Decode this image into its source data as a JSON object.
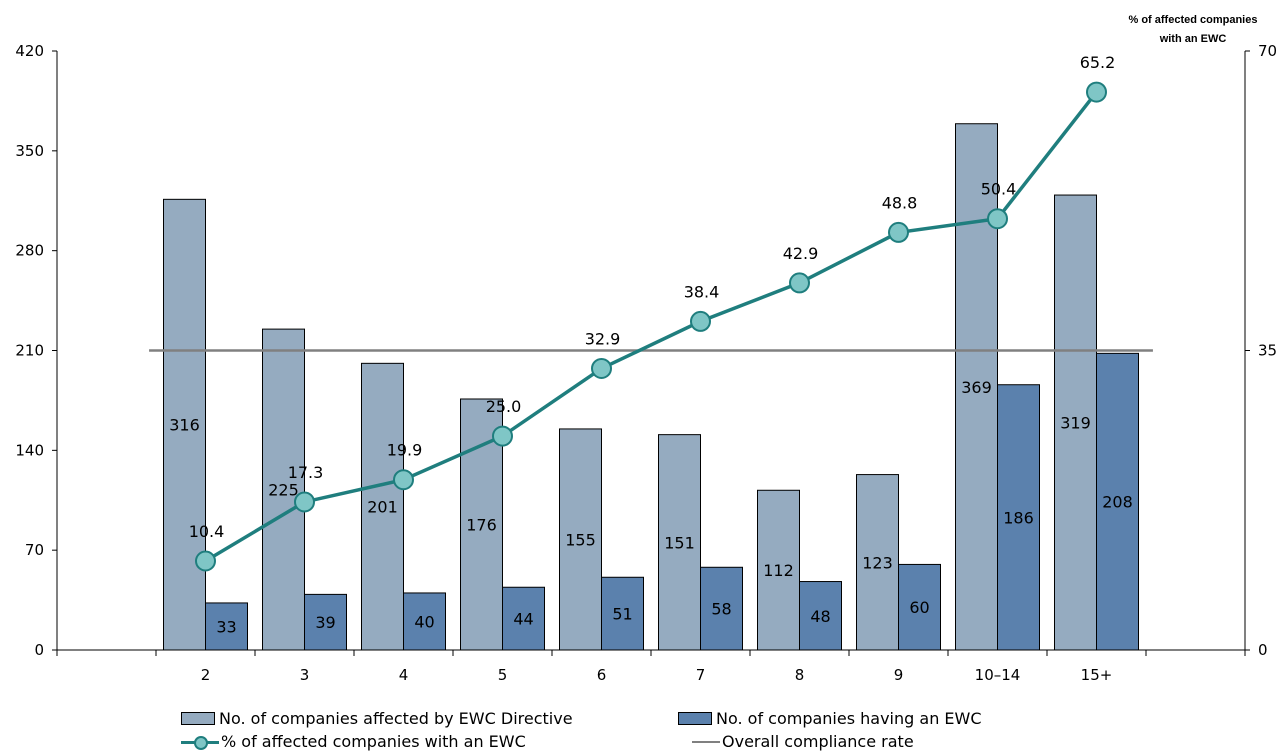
{
  "chart_data": {
    "type": "bar",
    "categories": [
      "2",
      "3",
      "4",
      "5",
      "6",
      "7",
      "8",
      "9",
      "10–14",
      "15+"
    ],
    "series": [
      {
        "name": "No. of companies affected by EWC Directive",
        "type": "bar",
        "axis": "left",
        "values": [
          316,
          225,
          201,
          176,
          155,
          151,
          112,
          123,
          369,
          319
        ],
        "color": "#95ABC0"
      },
      {
        "name": "No. of companies having an EWC",
        "type": "bar",
        "axis": "left",
        "values": [
          33,
          39,
          40,
          44,
          51,
          58,
          48,
          60,
          186,
          208
        ],
        "color": "#5B81AD"
      },
      {
        "name": "% of affected companies with an EWC",
        "type": "line",
        "axis": "right",
        "values": [
          10.4,
          17.3,
          19.9,
          25.0,
          32.9,
          38.4,
          42.9,
          48.8,
          50.4,
          65.2
        ],
        "labels": [
          "10.4",
          "17.3",
          "19.9",
          "25.0",
          "32.9",
          "38.4",
          "42.9",
          "48.8",
          "50.4",
          "65.2"
        ],
        "color": "#1F7E7E",
        "marker_color": "#7FC6C6"
      },
      {
        "name": "Overall compliance rate",
        "type": "hline",
        "axis": "right",
        "value": 35,
        "color": "#808080"
      }
    ],
    "y_left": {
      "ticks": [
        "0",
        "70",
        "140",
        "210",
        "280",
        "350",
        "420"
      ],
      "lim": [
        0,
        420
      ]
    },
    "y_right": {
      "ticks": [
        "0",
        "35",
        "70"
      ],
      "lim": [
        0,
        70
      ],
      "title_lines": [
        "% of affected companies",
        "with an EWC"
      ]
    },
    "legend": {
      "position": "bottom"
    },
    "grid": false
  }
}
